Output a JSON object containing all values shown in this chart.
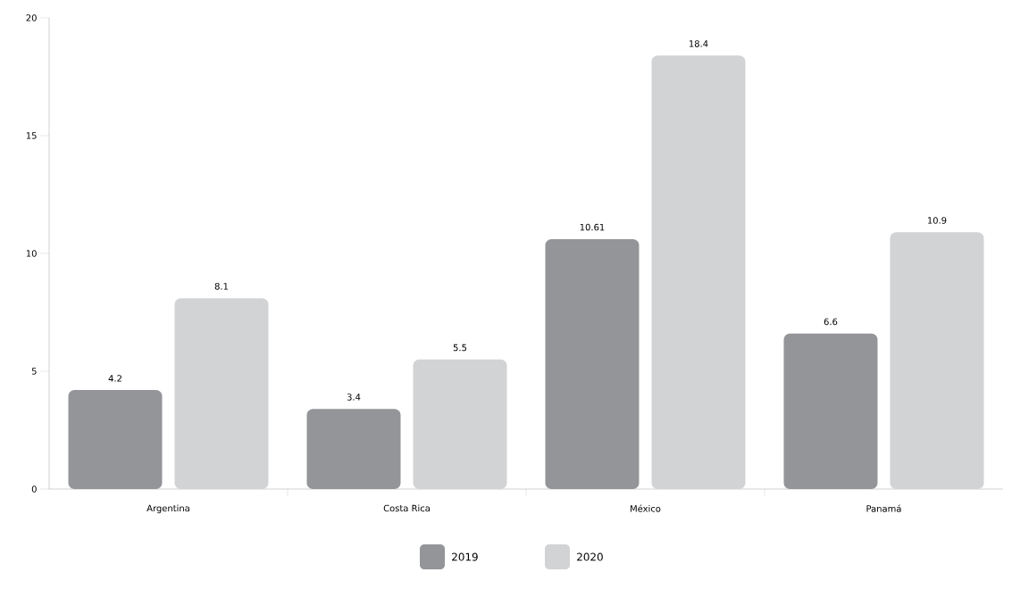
{
  "chart_data": {
    "type": "bar",
    "categories": [
      "Argentina",
      "Costa Rica",
      "México",
      "Panamá"
    ],
    "series": [
      {
        "name": "2019",
        "color": "#939598",
        "values": [
          4.2,
          3.4,
          10.61,
          6.6
        ]
      },
      {
        "name": "2020",
        "color": "#d1d3d4",
        "values": [
          8.1,
          5.5,
          18.4,
          10.9
        ]
      }
    ],
    "ylim": [
      0,
      20
    ],
    "yticks": [
      0,
      5,
      10,
      15,
      20
    ],
    "data_labels": true,
    "legend": "bottom",
    "grid": false
  }
}
